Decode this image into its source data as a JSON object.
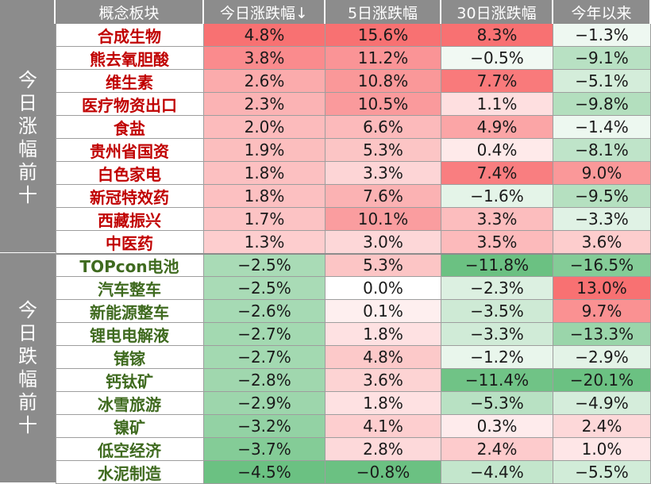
{
  "chart_data": {
    "type": "table",
    "columns": [
      "概念板块",
      "今日涨跌幅↓",
      "5日涨跌幅",
      "30日涨跌幅",
      "今年以来"
    ],
    "groups": [
      {
        "label": "今日涨幅前十",
        "rows": [
          {
            "name": "合成生物",
            "today": 4.8,
            "d5": 15.6,
            "d30": 8.3,
            "ytd": -1.3
          },
          {
            "name": "熊去氧胆酸",
            "today": 3.8,
            "d5": 11.2,
            "d30": -0.5,
            "ytd": -9.1
          },
          {
            "name": "维生素",
            "today": 2.6,
            "d5": 10.8,
            "d30": 7.7,
            "ytd": -5.1
          },
          {
            "name": "医疗物资出口",
            "today": 2.3,
            "d5": 10.5,
            "d30": 1.1,
            "ytd": -9.8
          },
          {
            "name": "食盐",
            "today": 2.0,
            "d5": 6.6,
            "d30": 4.9,
            "ytd": -1.4
          },
          {
            "name": "贵州省国资",
            "today": 1.9,
            "d5": 5.3,
            "d30": 0.4,
            "ytd": -8.1
          },
          {
            "name": "白色家电",
            "today": 1.8,
            "d5": 3.3,
            "d30": 7.4,
            "ytd": 9.0
          },
          {
            "name": "新冠特效药",
            "today": 1.8,
            "d5": 7.6,
            "d30": -1.6,
            "ytd": -9.5
          },
          {
            "name": "西藏振兴",
            "today": 1.7,
            "d5": 10.1,
            "d30": 3.3,
            "ytd": -3.3
          },
          {
            "name": "中医药",
            "today": 1.3,
            "d5": 3.0,
            "d30": 3.5,
            "ytd": 3.6
          }
        ]
      },
      {
        "label": "今日跌幅前十",
        "rows": [
          {
            "name": "TOPcon电池",
            "today": -2.5,
            "d5": 5.3,
            "d30": -11.8,
            "ytd": -16.5
          },
          {
            "name": "汽车整车",
            "today": -2.5,
            "d5": 0.0,
            "d30": -2.3,
            "ytd": 13.0
          },
          {
            "name": "新能源整车",
            "today": -2.6,
            "d5": 0.1,
            "d30": -3.5,
            "ytd": 9.7
          },
          {
            "name": "锂电电解液",
            "today": -2.7,
            "d5": 1.8,
            "d30": -3.3,
            "ytd": -13.3
          },
          {
            "name": "锗镓",
            "today": -2.7,
            "d5": 4.8,
            "d30": -1.2,
            "ytd": -2.9
          },
          {
            "name": "钙钛矿",
            "today": -2.8,
            "d5": 3.6,
            "d30": -11.4,
            "ytd": -20.1
          },
          {
            "name": "冰雪旅游",
            "today": -2.9,
            "d5": 1.8,
            "d30": -5.3,
            "ytd": -4.9
          },
          {
            "name": "镍矿",
            "today": -3.2,
            "d5": 4.1,
            "d30": 0.3,
            "ytd": 2.4
          },
          {
            "name": "低空经济",
            "today": -3.7,
            "d5": 2.8,
            "d30": 2.4,
            "ytd": 1.0
          },
          {
            "name": "水泥制造",
            "today": -4.5,
            "d5": -0.8,
            "d30": -4.4,
            "ytd": -5.5
          }
        ]
      }
    ],
    "value_format": "percent_one_decimal",
    "colors": {
      "header_bg": "#8c8c8c",
      "header_text": "#ffffff",
      "gain_name": "#c00000",
      "loss_name": "#3f6a1f",
      "gain_strong": "#f8696b",
      "loss_strong": "#63be7b",
      "neutral": "#ffffff"
    }
  }
}
